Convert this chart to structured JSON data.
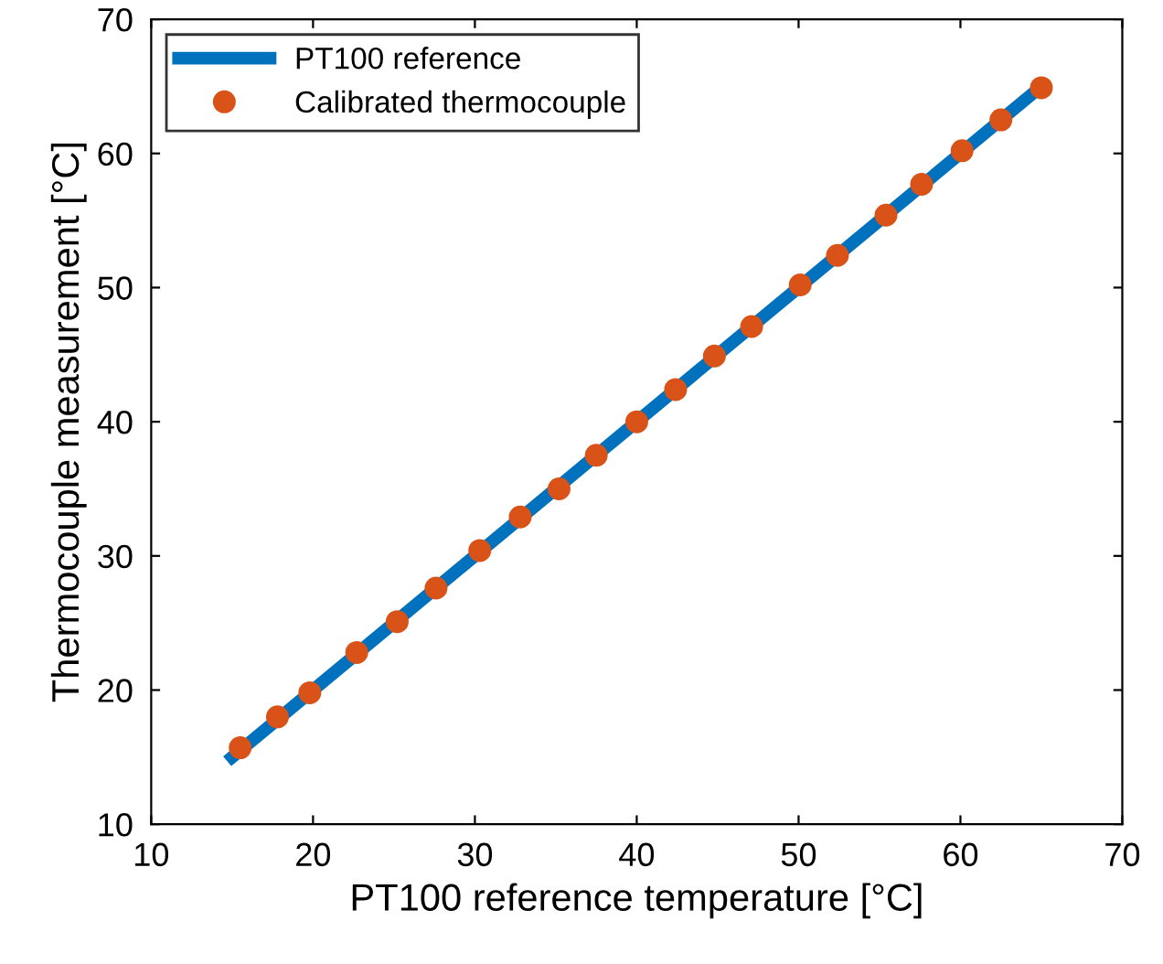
{
  "chart_data": {
    "type": "line",
    "xlabel": "PT100 reference temperature [°C]",
    "ylabel": "Thermocouple measurement [°C]",
    "series": [
      {
        "name": "PT100 reference",
        "color": "#0072bd",
        "x": [
          15,
          65
        ],
        "values": [
          15,
          65
        ]
      },
      {
        "name": "Calibrated thermocouple",
        "type": "scatter",
        "marker": "circle",
        "color": "#d95319",
        "x": [
          15.5,
          17.8,
          19.8,
          22.7,
          25.2,
          27.6,
          30.3,
          32.8,
          35.2,
          37.5,
          40,
          42.4,
          44.8,
          47.1,
          50.1,
          52.4,
          55.4,
          57.6,
          60.1,
          62.5,
          65
        ],
        "values": [
          15.7,
          18,
          19.8,
          22.8,
          25.1,
          27.6,
          30.4,
          32.9,
          35,
          37.5,
          40,
          42.4,
          44.9,
          47.1,
          50.2,
          52.4,
          55.4,
          57.7,
          60.2,
          62.5,
          64.9
        ]
      }
    ],
    "xlim": [
      10,
      70
    ],
    "ylim": [
      10,
      70
    ],
    "xticks": [
      10,
      20,
      30,
      40,
      50,
      60,
      70
    ],
    "yticks": [
      10,
      20,
      30,
      40,
      50,
      60,
      70
    ],
    "grid": false,
    "legend": "top left"
  }
}
